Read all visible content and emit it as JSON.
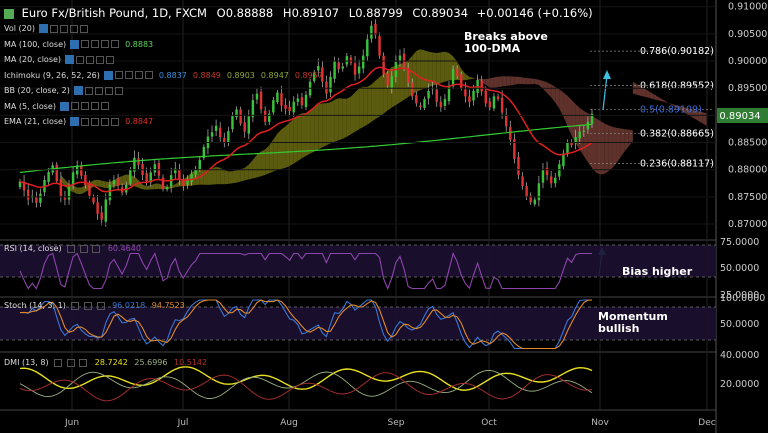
{
  "header": {
    "symbol": "Euro Fx/British Pound, 1D, FXCM",
    "o_label": "O",
    "o_value": "0.88888",
    "h_label": "H",
    "h_value": "0.89107",
    "l_label": "L",
    "l_value": "0.88799",
    "c_label": "C",
    "c_value": "0.89034",
    "change": "+0.00146 (+0.16%)"
  },
  "indicators": [
    {
      "label": "Vol (20)",
      "values": [],
      "colors": []
    },
    {
      "label": "MA (100, close)",
      "values": [
        "0.8883"
      ],
      "colors": [
        "#5fd35f"
      ]
    },
    {
      "label": "MA (20, close)",
      "values": [],
      "colors": []
    },
    {
      "label": "Ichimoku (9, 26, 52, 26)",
      "values": [
        "0.8837",
        "0.8849",
        "0.8903",
        "0.8947",
        "0.8957"
      ],
      "colors": [
        "#3a8fe0",
        "#c0392b",
        "#8ea83a",
        "#8ea83a",
        "#c0392b"
      ]
    },
    {
      "label": "BB (20, close, 2)",
      "values": [],
      "colors": []
    },
    {
      "label": "MA (5, close)",
      "values": [],
      "colors": []
    },
    {
      "label": "EMA (21, close)",
      "values": [
        "0.8847"
      ],
      "colors": [
        "#e03030"
      ]
    }
  ],
  "price_axis": {
    "ticks": [
      "0.91000",
      "0.90500",
      "0.90000",
      "0.89500",
      "0.89000",
      "0.88500",
      "0.88000",
      "0.87500",
      "0.87000"
    ],
    "current": "0.89034",
    "current_color": "#2e7d32"
  },
  "fib_levels": [
    {
      "label": "0.786(0.90182)",
      "value": 0.90182,
      "color": "#ffffff"
    },
    {
      "label": "0.618(0.89552)",
      "value": 0.89552,
      "color": "#ffffff"
    },
    {
      "label": "0.5(0.89109)",
      "value": 0.89109,
      "color": "#3a6fd8"
    },
    {
      "label": "0.382(0.88665)",
      "value": 0.88665,
      "color": "#ffffff"
    },
    {
      "label": "0.236(0.88117)",
      "value": 0.88117,
      "color": "#ffffff"
    }
  ],
  "annotations": {
    "breaks": "Breaks above\n100-DMA",
    "bias": "Bias higher",
    "momentum": "Momentum\nbullish"
  },
  "rsi": {
    "label": "RSI (14, close)",
    "value": "60.4640",
    "ticks": [
      "75.0000",
      "50.0000",
      "25.0000"
    ]
  },
  "stoch": {
    "label": "Stoch (14, 3, 1)",
    "k": "96.0218",
    "d": "94.7523",
    "ticks": [
      "100.0000",
      "50.0000"
    ]
  },
  "dmi": {
    "label": "DMI (13, 8)",
    "adx": "28.7242",
    "plus": "25.6996",
    "minus": "10.5142",
    "ticks": [
      "40.0000",
      "20.0000"
    ]
  },
  "time_axis": [
    "Jun",
    "Jul",
    "Aug",
    "Sep",
    "Oct",
    "Nov",
    "Dec"
  ],
  "chart_data": {
    "type": "candlestick",
    "title": "Euro Fx/British Pound, 1D, FXCM",
    "ylim": [
      0.8678,
      0.9105
    ],
    "closes": [
      0.8778,
      0.8762,
      0.8745,
      0.8752,
      0.8739,
      0.8756,
      0.8781,
      0.8796,
      0.8808,
      0.8779,
      0.8751,
      0.8745,
      0.877,
      0.8795,
      0.8808,
      0.8789,
      0.8771,
      0.8752,
      0.874,
      0.8719,
      0.8708,
      0.8745,
      0.8772,
      0.8781,
      0.877,
      0.8758,
      0.8772,
      0.88,
      0.8822,
      0.8809,
      0.879,
      0.8779,
      0.8795,
      0.881,
      0.8789,
      0.8765,
      0.8768,
      0.879,
      0.8802,
      0.8781,
      0.877,
      0.8781,
      0.8792,
      0.88,
      0.8818,
      0.8842,
      0.8861,
      0.8869,
      0.8881,
      0.886,
      0.8849,
      0.8871,
      0.8899,
      0.8911,
      0.8885,
      0.887,
      0.8898,
      0.8928,
      0.894,
      0.8911,
      0.8888,
      0.8903,
      0.8928,
      0.8942,
      0.8918,
      0.8912,
      0.8908,
      0.8925,
      0.8931,
      0.8919,
      0.8938,
      0.8962,
      0.8979,
      0.8991,
      0.8962,
      0.894,
      0.8971,
      0.8999,
      0.8985,
      0.899,
      0.9009,
      0.8996,
      0.8975,
      0.899,
      0.901,
      0.904,
      0.9065,
      0.9048,
      0.901,
      0.8975,
      0.8955,
      0.8972,
      0.8998,
      0.901,
      0.899,
      0.896,
      0.8935,
      0.8922,
      0.8915,
      0.893,
      0.8945,
      0.895,
      0.8925,
      0.8915,
      0.893,
      0.8955,
      0.8985,
      0.8972,
      0.895,
      0.8935,
      0.8925,
      0.8945,
      0.8965,
      0.8944,
      0.8922,
      0.8915,
      0.8935,
      0.893,
      0.8905,
      0.888,
      0.8855,
      0.882,
      0.879,
      0.877,
      0.875,
      0.874,
      0.8745,
      0.8775,
      0.88,
      0.879,
      0.8775,
      0.8785,
      0.881,
      0.883,
      0.885,
      0.8845,
      0.886,
      0.887,
      0.8872,
      0.8888,
      0.8903
    ]
  }
}
